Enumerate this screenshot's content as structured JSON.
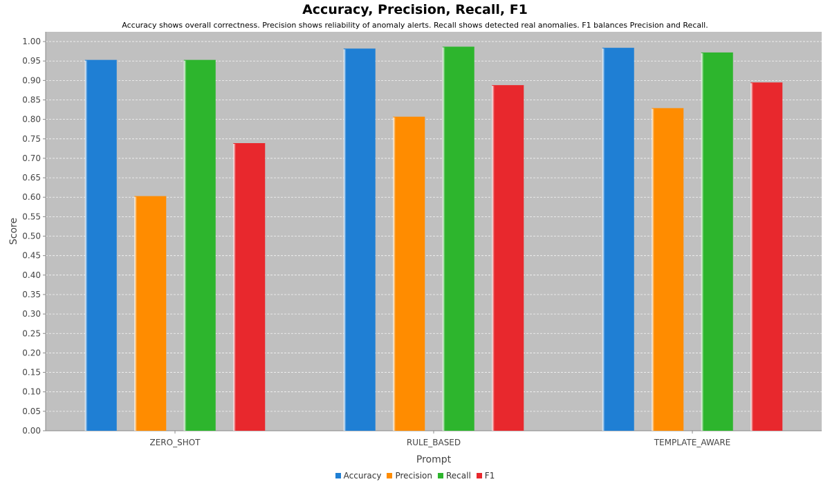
{
  "chart_data": {
    "type": "bar",
    "title": "Accuracy, Precision, Recall, F1",
    "subtitle": "Accuracy shows overall correctness. Precision shows reliability of anomaly alerts. Recall shows detected real anomalies. F1 balances Precision and Recall.",
    "xlabel": "Prompt",
    "ylabel": "Score",
    "ylim": [
      0,
      1.025
    ],
    "yticks": [
      "0.00",
      "0.05",
      "0.10",
      "0.15",
      "0.20",
      "0.25",
      "0.30",
      "0.35",
      "0.40",
      "0.45",
      "0.50",
      "0.55",
      "0.60",
      "0.65",
      "0.70",
      "0.75",
      "0.80",
      "0.85",
      "0.90",
      "0.95",
      "1.00"
    ],
    "grid": true,
    "legend_position": "bottom",
    "categories": [
      "ZERO_SHOT",
      "RULE_BASED",
      "TEMPLATE_AWARE"
    ],
    "series": [
      {
        "name": "Accuracy",
        "color": "#1f7fd4",
        "values": [
          0.952,
          0.981,
          0.983
        ]
      },
      {
        "name": "Precision",
        "color": "#ff8c00",
        "values": [
          0.602,
          0.806,
          0.828
        ]
      },
      {
        "name": "Recall",
        "color": "#2db52d",
        "values": [
          0.952,
          0.986,
          0.971
        ]
      },
      {
        "name": "F1",
        "color": "#e8282d",
        "values": [
          0.738,
          0.887,
          0.894
        ]
      }
    ]
  }
}
